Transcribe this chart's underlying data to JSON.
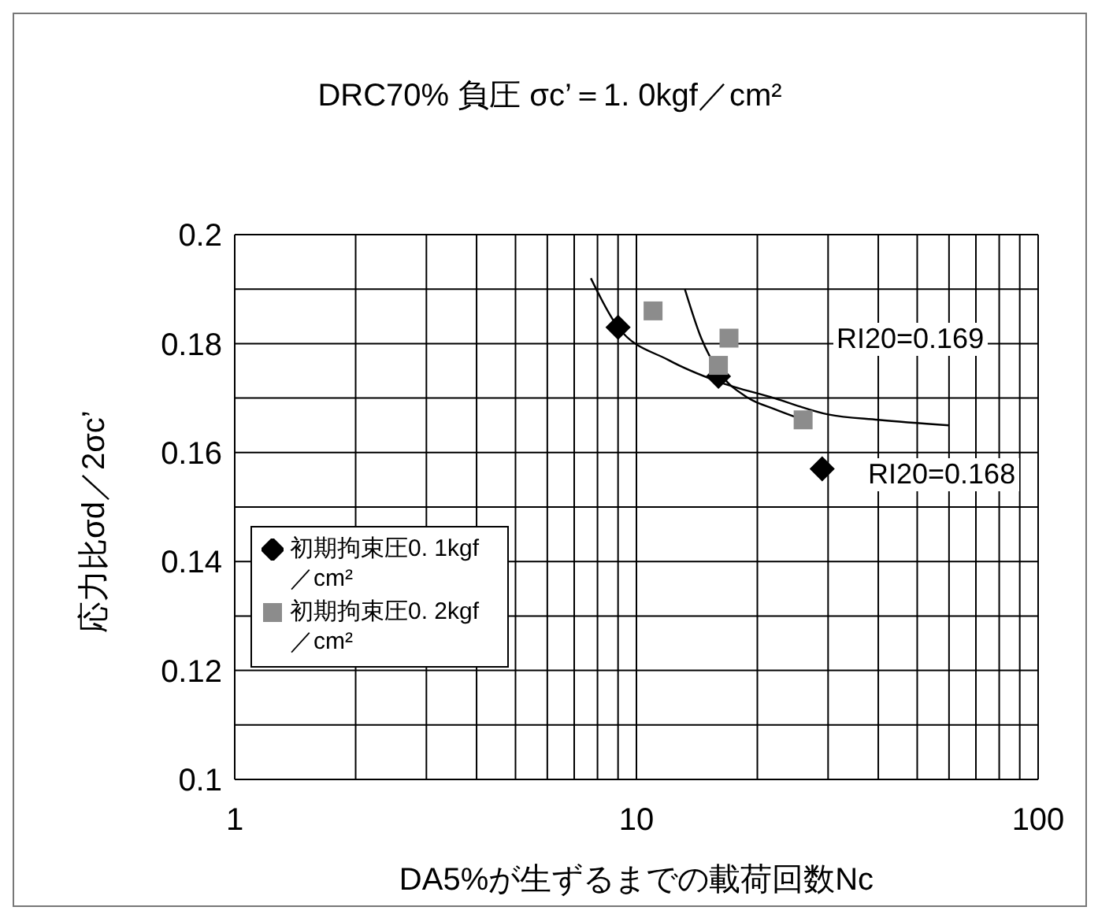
{
  "chart_data": {
    "type": "scatter",
    "title": "DRC70%  負圧  σc’＝1. 0kgf／cm²",
    "xlabel": "DA5%が生ずるまでの載荷回数Nc",
    "ylabel": "応力比σd／2σc’",
    "log": "x",
    "grid": true,
    "legend": "bottom left",
    "xlim": [
      1,
      100
    ],
    "xticks": [
      1,
      {
        "value": 2,
        "label": null
      },
      {
        "value": 3,
        "label": null
      },
      {
        "value": 4,
        "label": null
      },
      {
        "value": 5,
        "label": null
      },
      {
        "value": 6,
        "label": null
      },
      {
        "value": 7,
        "label": null
      },
      {
        "value": 8,
        "label": null
      },
      {
        "value": 9,
        "label": null
      },
      10,
      {
        "value": 20,
        "label": null
      },
      {
        "value": 30,
        "label": null
      },
      {
        "value": 40,
        "label": null
      },
      {
        "value": 50,
        "label": null
      },
      {
        "value": 60,
        "label": null
      },
      {
        "value": 70,
        "label": null
      },
      {
        "value": 80,
        "label": null
      },
      {
        "value": 90,
        "label": null
      },
      100
    ],
    "ylim": [
      0.1,
      0.2
    ],
    "yticks": [
      0.1,
      {
        "value": 0.11,
        "label": null
      },
      0.12,
      {
        "value": 0.13,
        "label": null
      },
      0.14,
      {
        "value": 0.15,
        "label": null
      },
      0.16,
      {
        "value": 0.17,
        "label": null
      },
      0.18,
      {
        "value": 0.19,
        "label": null
      },
      0.2
    ],
    "series": [
      {
        "name": "初期拘束圧0. 1kgf／cm²",
        "marker": "diamond",
        "color": "#000000",
        "x": [
          9,
          16,
          29
        ],
        "values": [
          0.183,
          0.174,
          0.157
        ]
      },
      {
        "name": "初期拘束圧0. 2kgf／cm²",
        "marker": "square",
        "color": "#8c8c8c",
        "x": [
          11,
          16,
          17,
          26
        ],
        "values": [
          0.186,
          0.176,
          0.181,
          0.166
        ]
      },
      {
        "type": "line",
        "marker": "none",
        "color": "#000000",
        "x": [
          7.7,
          9,
          12,
          16,
          22,
          30,
          40,
          60
        ],
        "values": [
          0.192,
          0.183,
          0.177,
          0.173,
          0.17,
          0.167,
          0.166,
          0.165
        ]
      },
      {
        "type": "line",
        "marker": "none",
        "color": "#000000",
        "x": [
          13.2,
          14.5,
          16,
          19,
          22,
          26
        ],
        "values": [
          0.19,
          0.181,
          0.175,
          0.17,
          0.168,
          0.166
        ]
      }
    ],
    "annotations": [
      "RI20=0.169",
      "RI20=0.168"
    ]
  }
}
